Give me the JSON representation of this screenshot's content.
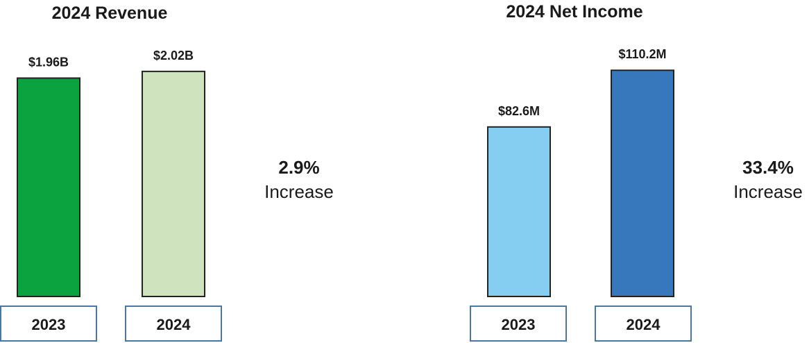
{
  "chart_data": [
    {
      "type": "bar",
      "title": "2024 Revenue",
      "categories": [
        "2023",
        "2024"
      ],
      "values": [
        1.96,
        2.02
      ],
      "unit": "billion USD",
      "data_labels": [
        "$1.96B",
        "$2.02B"
      ],
      "colors": [
        "#0aa33f",
        "#cfe3bf"
      ],
      "change_value": "2.9%",
      "change_label": "Increase",
      "ylim": [
        0,
        2.1
      ],
      "grid": false
    },
    {
      "type": "bar",
      "title": "2024 Net Income",
      "categories": [
        "2023",
        "2024"
      ],
      "values": [
        82.6,
        110.2
      ],
      "unit": "million USD",
      "data_labels": [
        "$82.6M",
        "$110.2M"
      ],
      "colors": [
        "#86cdf2",
        "#3678bb"
      ],
      "change_value": "33.4%",
      "change_label": "Increase",
      "ylim": [
        0,
        114
      ],
      "grid": false
    }
  ]
}
